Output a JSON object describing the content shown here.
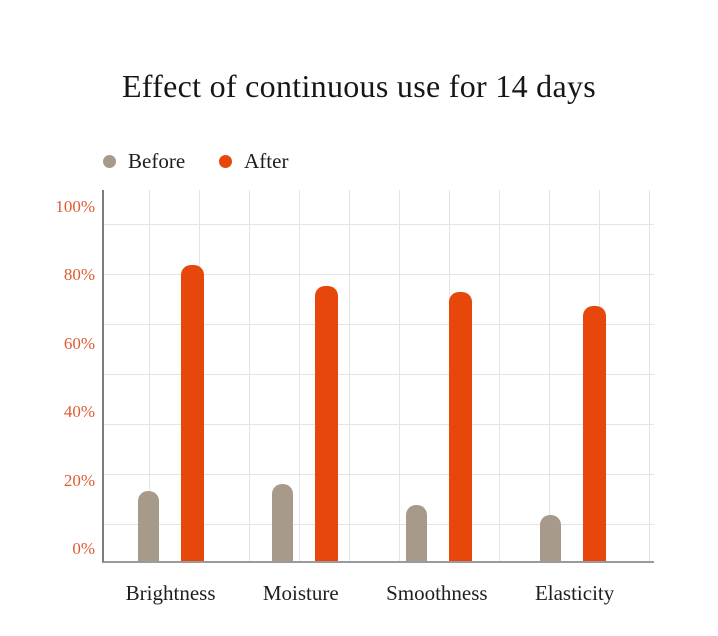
{
  "chart_data": {
    "type": "bar",
    "title": "Effect of continuous use for 14 days",
    "categories": [
      "Brightness",
      "Moisture",
      "Smoothness",
      "Elasticity"
    ],
    "series": [
      {
        "name": "Before",
        "color": "#A79A8A",
        "values": [
          17,
          19,
          13,
          10
        ]
      },
      {
        "name": "After",
        "color": "#E8470B",
        "values": [
          83,
          77,
          75,
          71
        ]
      }
    ],
    "xlabel": "",
    "ylabel": "",
    "ylim": [
      0,
      100
    ],
    "ytick_labels": [
      "100%",
      "80%",
      "60%",
      "40%",
      "20%",
      "0%"
    ],
    "grid": true,
    "legend_position": "top-left",
    "colors": {
      "tick_label": "#DD5B33",
      "gridline": "#E4E4E4",
      "axis_line": "#8A8A8A",
      "text": "#1C1C1C"
    }
  }
}
